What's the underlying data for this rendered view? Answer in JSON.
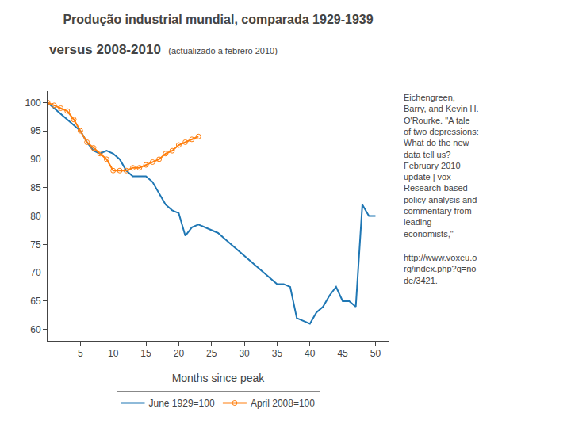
{
  "chart_data": {
    "type": "line",
    "title": "Produção industrial mundial, comparada 1929-1939",
    "subtitle": "versus 2008-2010",
    "annotations": [
      "(actualizado a febrero 2010)",
      "Eichengreen,\nBarry, and Kevin H.\nO'Rourke. \"A tale\nof two depressions:\nWhat do the new\ndata tell us?\nFebruary 2010\nupdate | vox -\nResearch-based\npolicy analysis and\ncommentary from\nleading\neconomists,\"",
      "http://www.voxeu.o\nrg/index.php?q=no\nde/3421."
    ],
    "x_label": "Months since peak",
    "xlim": [
      0,
      52
    ],
    "ylim": [
      58,
      102
    ],
    "xticks": [
      5,
      10,
      15,
      20,
      25,
      30,
      35,
      40,
      45,
      50
    ],
    "yticks": [
      60,
      65,
      70,
      75,
      80,
      85,
      90,
      95,
      100
    ],
    "grid": false,
    "legend": "bottom",
    "series": [
      {
        "name": "June 1929=100",
        "x": [
          0,
          1,
          2,
          3,
          4,
          5,
          6,
          7,
          8,
          9,
          10,
          11,
          12,
          13,
          14,
          15,
          16,
          17,
          18,
          19,
          20,
          21,
          22,
          23,
          24,
          25,
          26,
          27,
          28,
          29,
          30,
          31,
          32,
          33,
          34,
          35,
          36,
          37,
          38,
          39,
          40,
          41,
          42,
          43,
          44,
          45,
          46,
          47,
          48,
          49,
          50
        ],
        "values": [
          100,
          99,
          98,
          97,
          96,
          95,
          93,
          91.5,
          91,
          91.5,
          91,
          90,
          88,
          87,
          87,
          87,
          86,
          84,
          82,
          81,
          80.5,
          76.5,
          78,
          78.5,
          78,
          77.5,
          77,
          76,
          75,
          74,
          73,
          72,
          71,
          70,
          69,
          68,
          68,
          67.5,
          62,
          61.5,
          61,
          63,
          64,
          66,
          67.5,
          65,
          65,
          64,
          82,
          80,
          80
        ]
      },
      {
        "name": "April 2008=100",
        "marker": "circle",
        "x": [
          0,
          1,
          2,
          3,
          4,
          5,
          6,
          7,
          8,
          9,
          10,
          11,
          12,
          13,
          14,
          15,
          16,
          17,
          18,
          19,
          20,
          21,
          22,
          23
        ],
        "values": [
          100,
          99.5,
          99,
          98.5,
          97,
          95,
          93,
          92,
          91,
          90,
          88,
          88,
          88,
          88.5,
          88.5,
          89,
          89.5,
          90,
          91,
          91.5,
          92.5,
          93,
          93.5,
          94
        ]
      }
    ]
  }
}
